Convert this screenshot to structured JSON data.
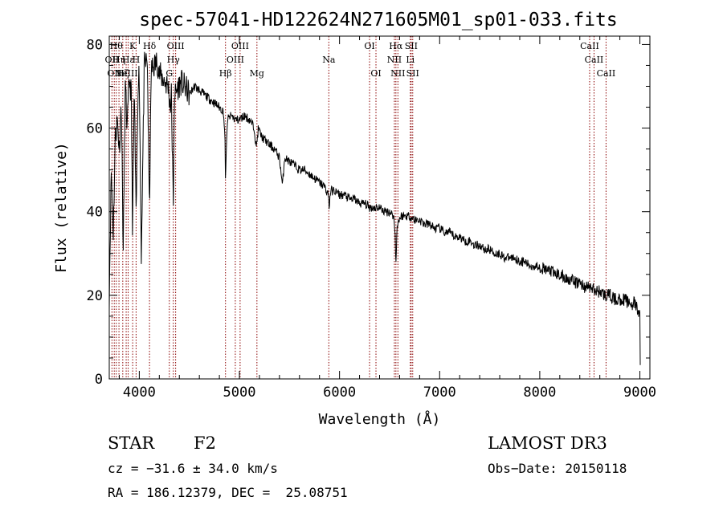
{
  "chart_data": {
    "type": "line",
    "title": "spec-57041-HD122624N271605M01_sp01-033.fits",
    "xlabel": "Wavelength (Å)",
    "ylabel": "Flux (relative)",
    "xlim": [
      3700,
      9100
    ],
    "ylim": [
      0,
      82
    ],
    "x_ticks": [
      4000,
      5000,
      6000,
      7000,
      8000,
      9000
    ],
    "y_ticks": [
      0,
      20,
      40,
      60,
      80
    ],
    "grid": false,
    "line_color": "#000000",
    "marker_color": "#8b0000",
    "series": [
      {
        "name": "flux",
        "x": [
          3700,
          3720,
          3740,
          3760,
          3780,
          3800,
          3820,
          3840,
          3860,
          3880,
          3900,
          3920,
          3933,
          3950,
          3968,
          3990,
          4000,
          4020,
          4050,
          4080,
          4101,
          4120,
          4150,
          4180,
          4200,
          4230,
          4260,
          4290,
          4310,
          4320,
          4340,
          4350,
          4360,
          4390,
          4420,
          4450,
          4480,
          4500,
          4550,
          4600,
          4650,
          4700,
          4750,
          4800,
          4840,
          4855,
          4861,
          4870,
          4880,
          4920,
          4960,
          5000,
          5050,
          5100,
          5150,
          5167,
          5175,
          5190,
          5220,
          5260,
          5300,
          5350,
          5400,
          5430,
          5450,
          5500,
          5550,
          5600,
          5650,
          5700,
          5750,
          5800,
          5850,
          5890,
          5896,
          5910,
          5950,
          6000,
          6050,
          6100,
          6150,
          6200,
          6250,
          6300,
          6350,
          6400,
          6450,
          6500,
          6540,
          6555,
          6563,
          6575,
          6590,
          6620,
          6650,
          6700,
          6750,
          6800,
          6850,
          6900,
          6950,
          7000,
          7050,
          7100,
          7150,
          7200,
          7250,
          7300,
          7350,
          7400,
          7450,
          7500,
          7550,
          7600,
          7650,
          7700,
          7750,
          7800,
          7850,
          7900,
          7950,
          8000,
          8050,
          8100,
          8150,
          8200,
          8250,
          8300,
          8350,
          8400,
          8450,
          8500,
          8550,
          8600,
          8650,
          8700,
          8750,
          8800,
          8850,
          8900,
          8950,
          9000,
          9005
        ],
        "y": [
          20,
          50,
          35,
          58,
          62,
          55,
          66,
          30,
          70,
          60,
          72,
          68,
          35,
          70,
          38,
          74,
          72,
          30,
          75,
          76,
          40,
          74,
          75,
          76,
          73,
          72,
          71,
          70,
          65,
          68,
          40,
          69,
          68,
          70,
          71,
          70,
          69,
          68,
          70,
          69,
          68,
          67,
          66,
          65,
          64,
          58,
          47,
          55,
          62,
          63,
          62,
          62,
          63,
          62,
          60,
          55,
          57,
          60,
          58,
          57,
          56,
          55,
          53,
          46,
          53,
          52,
          51,
          50,
          50,
          49,
          48,
          47,
          46,
          44,
          41,
          45,
          45,
          44,
          44,
          43,
          43,
          42,
          42,
          41,
          41,
          41,
          40,
          40,
          39,
          35,
          28,
          36,
          38,
          39,
          39,
          39,
          38,
          38,
          37,
          37,
          36,
          36,
          35,
          35,
          34,
          34,
          33,
          33,
          32,
          32,
          31,
          31,
          30,
          30,
          29,
          29,
          29,
          28,
          28,
          27,
          27,
          27,
          26,
          26,
          25,
          25,
          24,
          24,
          23,
          23,
          22,
          22,
          21,
          21,
          20,
          20,
          19,
          19,
          19,
          18,
          18,
          15,
          2
        ]
      }
    ],
    "line_markers": [
      {
        "wave": 3727,
        "label": "OII",
        "row": 2
      },
      {
        "wave": 3750,
        "label": "OII",
        "row": 3
      },
      {
        "wave": 3770,
        "label": "Hθ",
        "row": 1
      },
      {
        "wave": 3797,
        "label": "Hη",
        "row": 2
      },
      {
        "wave": 3835,
        "label": "Hζ",
        "row": 3
      },
      {
        "wave": 3869,
        "label": "NeIII",
        "row": 3
      },
      {
        "wave": 3889,
        "label": "Hε",
        "row": 2
      },
      {
        "wave": 3934,
        "label": "K",
        "row": 1
      },
      {
        "wave": 3968,
        "label": "H",
        "row": 2
      },
      {
        "wave": 4102,
        "label": "Hδ",
        "row": 1
      },
      {
        "wave": 4300,
        "label": "G",
        "row": 3
      },
      {
        "wave": 4340,
        "label": "Hγ",
        "row": 2
      },
      {
        "wave": 4363,
        "label": "OIII",
        "row": 1
      },
      {
        "wave": 4861,
        "label": "Hβ",
        "row": 3
      },
      {
        "wave": 4959,
        "label": "OIII",
        "row": 2
      },
      {
        "wave": 5007,
        "label": "OIII",
        "row": 1
      },
      {
        "wave": 5175,
        "label": "Mg",
        "row": 3
      },
      {
        "wave": 5893,
        "label": "Na",
        "row": 2
      },
      {
        "wave": 6300,
        "label": "OI",
        "row": 1
      },
      {
        "wave": 6364,
        "label": "OI",
        "row": 3
      },
      {
        "wave": 6548,
        "label": "NII",
        "row": 2
      },
      {
        "wave": 6563,
        "label": "Hα",
        "row": 1
      },
      {
        "wave": 6583,
        "label": "NII",
        "row": 3
      },
      {
        "wave": 6707,
        "label": "Li",
        "row": 2
      },
      {
        "wave": 6716,
        "label": "SII",
        "row": 1
      },
      {
        "wave": 6731,
        "label": "SII",
        "row": 3
      },
      {
        "wave": 8498,
        "label": "CaII",
        "row": 1
      },
      {
        "wave": 8542,
        "label": "CaII",
        "row": 2
      },
      {
        "wave": 8662,
        "label": "CaII",
        "row": 3
      }
    ]
  },
  "info": {
    "object_type": "STAR",
    "subclass": "F2",
    "survey": "LAMOST DR3",
    "cz": "cz = −31.6 ± 34.0 km/s",
    "obs_date": "Obs−Date: 20150118",
    "radec": "RA = 186.12379, DEC =  25.08751"
  }
}
